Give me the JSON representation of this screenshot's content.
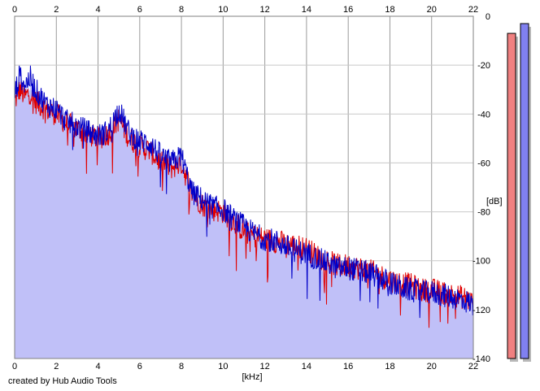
{
  "chart_data": {
    "type": "area",
    "x_unit_label": "[kHz]",
    "y_unit_label": "[dB]",
    "xlim": [
      0,
      22
    ],
    "ylim": [
      -140,
      0
    ],
    "x_ticks": [
      "0",
      "2",
      "4",
      "6",
      "8",
      "10",
      "12",
      "14",
      "16",
      "18",
      "20",
      "22"
    ],
    "y_ticks": [
      "0",
      "-20",
      "-40",
      "-60",
      "-80",
      "-100",
      "-120",
      "-140"
    ],
    "grid": true,
    "fill_color": "#c0c0f8",
    "series": [
      {
        "color": "#e00000",
        "x": [
          0,
          0.25,
          0.5,
          0.75,
          1,
          1.5,
          2,
          2.5,
          3,
          3.5,
          4,
          4.5,
          5,
          5.5,
          6,
          6.5,
          7,
          7.5,
          8,
          8.5,
          9,
          9.5,
          10,
          10.5,
          11,
          11.5,
          12,
          12.5,
          13,
          13.5,
          14,
          14.5,
          15,
          15.5,
          16,
          16.5,
          17,
          17.5,
          18,
          18.5,
          19,
          19.5,
          20,
          20.5,
          21,
          21.5,
          22
        ],
        "values": [
          -35,
          -30,
          -33,
          -31,
          -35,
          -38,
          -40,
          -44,
          -46,
          -48,
          -50,
          -48,
          -42,
          -50,
          -53,
          -55,
          -60,
          -62,
          -60,
          -72,
          -77,
          -79,
          -80,
          -84,
          -88,
          -90,
          -91,
          -92,
          -93,
          -94,
          -95,
          -98,
          -100,
          -102,
          -102,
          -103,
          -104,
          -106,
          -108,
          -109,
          -110,
          -112,
          -112,
          -113,
          -114,
          -115,
          -117
        ]
      },
      {
        "color": "#0000c8",
        "x": [
          0,
          0.25,
          0.5,
          0.75,
          1,
          1.5,
          2,
          2.5,
          3,
          3.5,
          4,
          4.5,
          5,
          5.5,
          6,
          6.5,
          7,
          7.5,
          8,
          8.5,
          9,
          9.5,
          10,
          10.5,
          11,
          11.5,
          12,
          12.5,
          13,
          13.5,
          14,
          14.5,
          15,
          15.5,
          16,
          16.5,
          17,
          17.5,
          18,
          18.5,
          19,
          19.5,
          20,
          20.5,
          21,
          21.5,
          22
        ],
        "values": [
          -32,
          -24,
          -28,
          -25,
          -30,
          -36,
          -38,
          -43,
          -45,
          -47,
          -49,
          -47,
          -38,
          -48,
          -51,
          -52,
          -57,
          -60,
          -57,
          -72,
          -75,
          -78,
          -79,
          -83,
          -86,
          -89,
          -91,
          -92,
          -94,
          -96,
          -97,
          -99,
          -101,
          -103,
          -103,
          -104,
          -105,
          -107,
          -109,
          -111,
          -112,
          -113,
          -113,
          -114,
          -115,
          -116,
          -118
        ]
      }
    ],
    "level_meters": [
      {
        "color": "#f08080",
        "value_db": -7
      },
      {
        "color": "#8080f0",
        "value_db": -3
      }
    ]
  },
  "credit_text": "created by Hub Audio Tools"
}
